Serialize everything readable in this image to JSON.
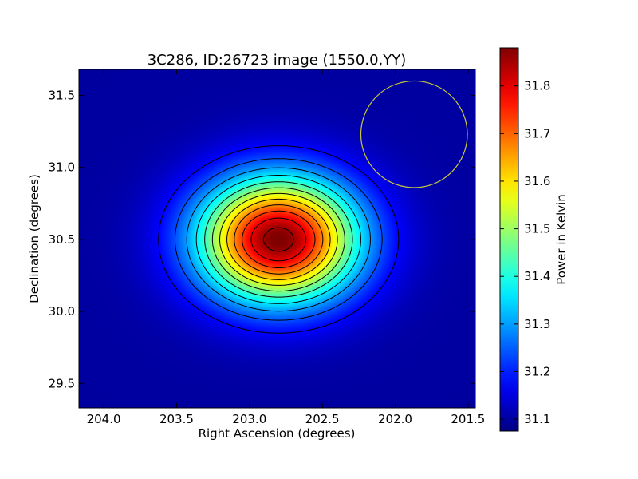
{
  "chart_data": {
    "type": "heatmap",
    "title": "3C286, ID:26723 image (1550.0,YY)",
    "xlabel": "Right Ascension (degrees)",
    "ylabel": "Declination (degrees)",
    "colorbar_label": "Power in Kelvin",
    "colormap": "jet",
    "xlim": [
      204.17,
      201.45
    ],
    "ylim": [
      29.33,
      31.68
    ],
    "x_ticks": [
      {
        "value": 204.0,
        "label": "204.0"
      },
      {
        "value": 203.5,
        "label": "203.5"
      },
      {
        "value": 203.0,
        "label": "203.0"
      },
      {
        "value": 202.5,
        "label": "202.5"
      },
      {
        "value": 202.0,
        "label": "202.0"
      },
      {
        "value": 201.5,
        "label": "201.5"
      }
    ],
    "y_ticks": [
      {
        "value": 29.5,
        "label": "29.5"
      },
      {
        "value": 30.0,
        "label": "30.0"
      },
      {
        "value": 30.5,
        "label": "30.5"
      },
      {
        "value": 31.0,
        "label": "31.0"
      },
      {
        "value": 31.5,
        "label": "31.5"
      }
    ],
    "colorbar_range": [
      31.075,
      31.88
    ],
    "colorbar_ticks": [
      {
        "value": 31.1,
        "label": "31.1"
      },
      {
        "value": 31.2,
        "label": "31.2"
      },
      {
        "value": 31.3,
        "label": "31.3"
      },
      {
        "value": 31.4,
        "label": "31.4"
      },
      {
        "value": 31.5,
        "label": "31.5"
      },
      {
        "value": 31.6,
        "label": "31.6"
      },
      {
        "value": 31.7,
        "label": "31.7"
      },
      {
        "value": 31.8,
        "label": "31.8"
      }
    ],
    "peak": {
      "ra": 202.8,
      "dec": 30.5,
      "value": 31.88
    },
    "background_level": 31.1,
    "source_width_deg": {
      "ra": 0.38,
      "dec": 0.3
    },
    "contour_count": 12,
    "beam_circle": {
      "ra": 201.87,
      "dec": 31.23,
      "radius_deg": 0.37,
      "color": "#c8c83c"
    },
    "grid": false
  }
}
